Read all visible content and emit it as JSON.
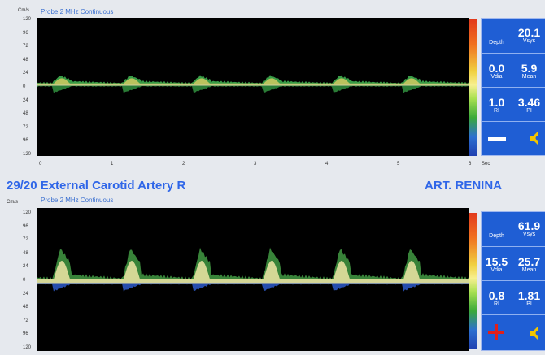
{
  "top": {
    "title": "Probe 2 MHz Continuous",
    "yunit": "Cm/s",
    "y_ticks": [
      "120",
      "96",
      "72",
      "48",
      "24",
      "0",
      "24",
      "48",
      "72",
      "96",
      "120"
    ],
    "x_ticks": [
      "0",
      "1",
      "2",
      "3",
      "4",
      "5",
      "6"
    ],
    "x_unit": "Sec",
    "readouts": {
      "depth_label": "Depth",
      "depth_value": "20.1",
      "vsys_label": "Vsys",
      "vdia_value": "0.0",
      "vdia_label": "Vdia",
      "vmean_value": "5.9",
      "vmean_label": "Mean",
      "ri_value": "1.0",
      "ri_label": "RI",
      "pi_value": "3.46",
      "pi_label": "PI"
    },
    "button_icon": "minus-icon",
    "speaker_icon": "speaker-icon"
  },
  "bottom": {
    "heading": "29/20 External Carotid Artery R",
    "heading_right": "ART. RENINA",
    "title": "Probe 2 MHz Continuous",
    "yunit": "Cm/s",
    "y_ticks": [
      "120",
      "96",
      "72",
      "48",
      "24",
      "0",
      "24",
      "48",
      "72",
      "96",
      "120"
    ],
    "readouts": {
      "depth_label": "Depth",
      "depth_value": "61.9",
      "vsys_label": "Vsys",
      "vdia_value": "15.5",
      "vdia_label": "Vdia",
      "vmean_value": "25.7",
      "vmean_label": "Mean",
      "ri_value": "0.8",
      "ri_label": "RI",
      "pi_value": "1.81",
      "pi_label": "PI"
    },
    "button_icon": "plus-icon",
    "speaker_icon": "speaker-icon"
  }
}
